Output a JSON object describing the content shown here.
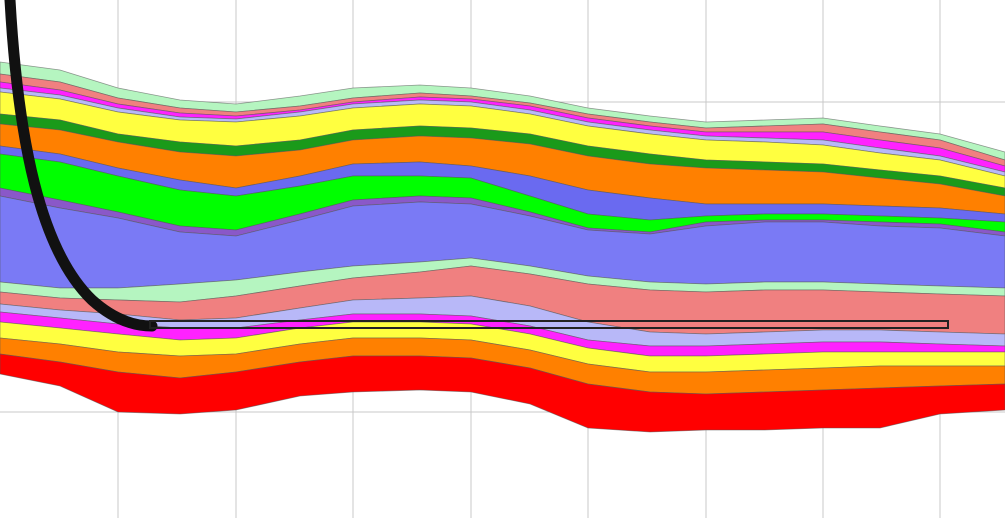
{
  "grid": {
    "line_color": "#c8c8c8",
    "vertical_count": 9,
    "horizontal_count": 3
  },
  "layers": [
    {
      "name": "layer-top-green",
      "color": "#b5f5c0"
    },
    {
      "name": "layer-top-salmon",
      "color": "#f08080"
    },
    {
      "name": "layer-top-magenta",
      "color": "#ff22ff"
    },
    {
      "name": "layer-top-lavender",
      "color": "#b8b8f8"
    },
    {
      "name": "layer-yellow",
      "color": "#ffff40"
    },
    {
      "name": "layer-dark-green",
      "color": "#1a9a1a"
    },
    {
      "name": "layer-orange",
      "color": "#ff8000"
    },
    {
      "name": "layer-blue-thin",
      "color": "#6a6af0"
    },
    {
      "name": "layer-bright-green",
      "color": "#00ff00"
    },
    {
      "name": "layer-purple-band",
      "color": "#8a58c8"
    },
    {
      "name": "layer-periwinkle",
      "color": "#7a7af5"
    },
    {
      "name": "layer-light-green",
      "color": "#b5f5c0"
    },
    {
      "name": "layer-salmon",
      "color": "#f08080"
    },
    {
      "name": "layer-lavender",
      "color": "#b8b8f8"
    },
    {
      "name": "layer-magenta",
      "color": "#ff22ff"
    },
    {
      "name": "layer-yellow-lower",
      "color": "#ffff40"
    },
    {
      "name": "layer-orange-lower",
      "color": "#ff8000"
    },
    {
      "name": "layer-red",
      "color": "#ff0000"
    }
  ],
  "wellbore": {
    "color": "#111111",
    "outline_color": "#222222"
  }
}
